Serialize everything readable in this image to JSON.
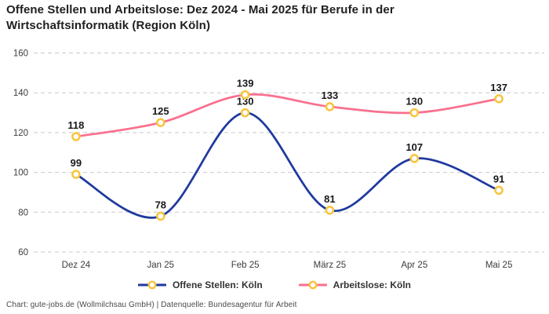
{
  "title": "Offene Stellen und Arbeitslose: Dez 2024 - Mai 2025 für Berufe in der Wirtschaftsinformatik (Region Köln)",
  "footer": "Chart: gute-jobs.de (Wollmilchsau GmbH) | Datenquelle: Bundesagentur für Arbeit",
  "colors": {
    "series_open": "#1f3a9e",
    "series_unemployed": "#f9708e",
    "marker_stroke": "#f8c43a",
    "marker_fill": "#ffffff",
    "grid": "#c9c9c9",
    "axis_text": "#3c3c3c",
    "label_text": "#17181c"
  },
  "chart_data": {
    "type": "line",
    "smooth": true,
    "categories": [
      "Dez 24",
      "Jan 25",
      "Feb 25",
      "März 25",
      "Apr 25",
      "Mai 25"
    ],
    "series": [
      {
        "name": "Offene Stellen: Köln",
        "values": [
          99,
          78,
          130,
          81,
          107,
          91
        ],
        "color": "#1f3a9e"
      },
      {
        "name": "Arbeitslose: Köln",
        "values": [
          118,
          125,
          139,
          133,
          130,
          137
        ],
        "color": "#f9708e"
      }
    ],
    "ylim": [
      60,
      160
    ],
    "yticks": [
      60,
      80,
      100,
      120,
      140,
      160
    ],
    "grid": "horizontal-dashed",
    "legend_position": "bottom",
    "marker": {
      "shape": "ring",
      "fill": "#ffffff",
      "stroke": "#f8c43a"
    },
    "data_labels": true
  }
}
